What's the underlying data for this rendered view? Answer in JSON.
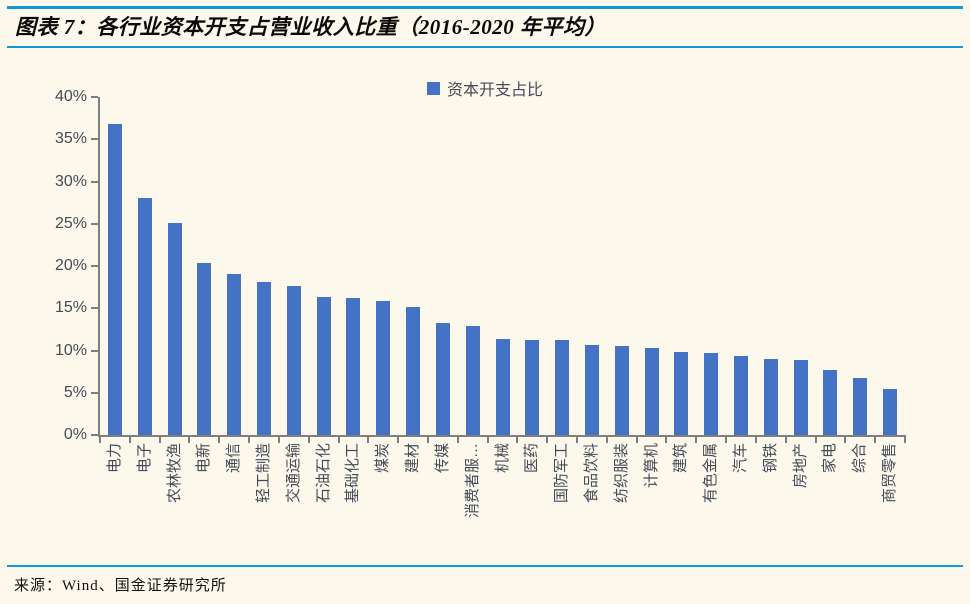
{
  "header": {
    "title": "图表 7：各行业资本开支占营业收入比重（2016-2020 年平均）"
  },
  "chart_data": {
    "type": "bar",
    "title": "",
    "legend": [
      "资本开支占比"
    ],
    "legend_position": "top-center",
    "categories": [
      "电力",
      "电子",
      "农林牧渔",
      "电新",
      "通信",
      "轻工制造",
      "交通运输",
      "石油石化",
      "基础化工",
      "煤炭",
      "建材",
      "传媒",
      "消费者服…",
      "机械",
      "医药",
      "国防军工",
      "食品饮料",
      "纺织服装",
      "计算机",
      "建筑",
      "有色金属",
      "汽车",
      "钢铁",
      "房地产",
      "家电",
      "综合",
      "商贸零售"
    ],
    "values": [
      36.8,
      28.1,
      25.1,
      20.4,
      19.0,
      18.1,
      17.6,
      16.3,
      16.2,
      15.9,
      15.1,
      13.2,
      12.9,
      11.4,
      11.3,
      11.2,
      10.6,
      10.5,
      10.3,
      9.8,
      9.7,
      9.3,
      9.0,
      8.9,
      7.7,
      6.8,
      5.5
    ],
    "xlabel": "",
    "ylabel": "",
    "ylim": [
      0,
      40
    ],
    "y_tick_step": 5,
    "y_tick_labels": [
      "0%",
      "5%",
      "10%",
      "15%",
      "20%",
      "25%",
      "30%",
      "35%",
      "40%"
    ],
    "grid": false
  },
  "footer": {
    "source": "来源：Wind、国金证券研究所"
  },
  "colors": {
    "bar": "#4472C4",
    "rule_blue": "#0E9AD6",
    "axis_line": "#7F7F7F",
    "axis_text": "#444B57",
    "background": "#FDF8EC"
  }
}
